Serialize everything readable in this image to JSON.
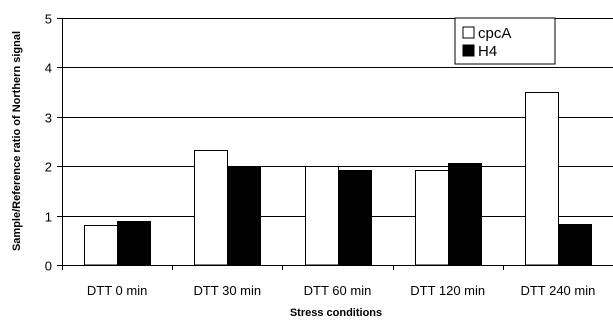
{
  "chart_data": {
    "type": "bar",
    "title": "",
    "xlabel": "Stress conditions",
    "ylabel": "Sample/Reference ratio of Northern signal",
    "ylim": [
      0,
      5
    ],
    "yticks": [
      0,
      1,
      2,
      3,
      4,
      5
    ],
    "grid": true,
    "legend_position": "top-right",
    "categories": [
      "DTT 0 min",
      "DTT 30 min",
      "DTT 60 min",
      "DTT 120 min",
      "DTT 240 min"
    ],
    "series": [
      {
        "name": "cpcA",
        "values": [
          0.8,
          2.32,
          2.0,
          1.92,
          3.5
        ],
        "color": "#ffffff"
      },
      {
        "name": "H4",
        "values": [
          0.9,
          2.0,
          1.92,
          2.07,
          0.82
        ],
        "color": "#000000"
      }
    ]
  }
}
